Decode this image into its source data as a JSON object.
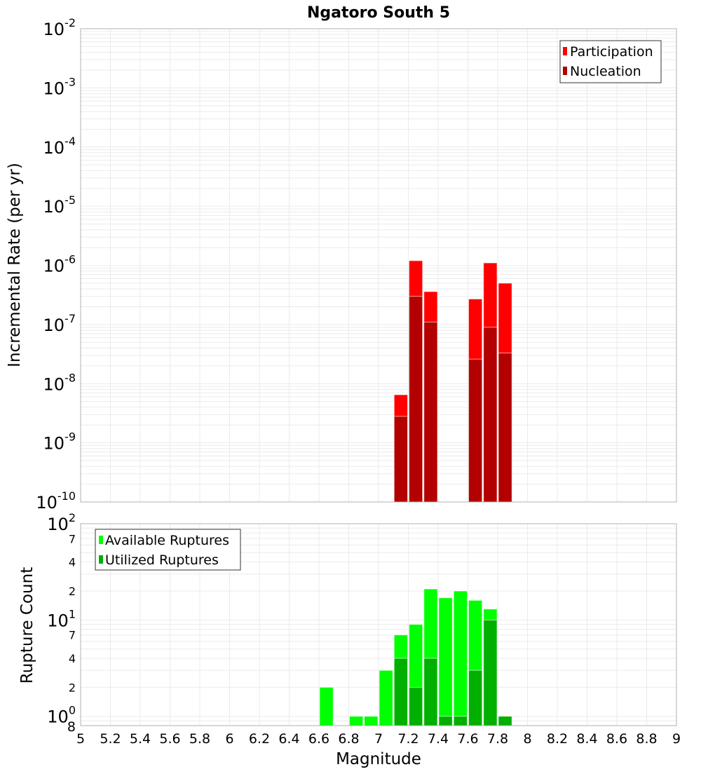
{
  "chart_data": [
    {
      "type": "bar",
      "title": "Ngatoro South 5",
      "xlabel": "Magnitude",
      "ylabel": "Incremental Rate (per yr)",
      "yscale": "log",
      "ylim": [
        1e-10,
        0.01
      ],
      "xlim": [
        5,
        9
      ],
      "grid": true,
      "legend_position": "top-right",
      "y_tick_labels": [
        "10^-2",
        "10^-3",
        "10^-4",
        "10^-5",
        "10^-6",
        "10^-7",
        "10^-8",
        "10^-9",
        "10^-10"
      ],
      "bar_width": 0.1,
      "x": [
        7.15,
        7.25,
        7.35,
        7.65,
        7.75,
        7.85
      ],
      "series": [
        {
          "name": "Participation",
          "color": "#ff0000",
          "values": [
            6.5e-09,
            1.2e-06,
            3.6e-07,
            2.7e-07,
            1.1e-06,
            5e-07
          ]
        },
        {
          "name": "Nucleation",
          "color": "#b30000",
          "values": [
            2.8e-09,
            3e-07,
            1.1e-07,
            2.6e-08,
            9e-08,
            3.3e-08
          ]
        }
      ]
    },
    {
      "type": "bar",
      "title": "",
      "xlabel": "Magnitude",
      "ylabel": "Rupture Count",
      "yscale": "log",
      "ylim": [
        0.8,
        100
      ],
      "xlim": [
        5,
        9
      ],
      "grid": true,
      "legend_position": "top-left",
      "y_tick_labels": [
        "10^2",
        "7",
        "4",
        "2",
        "10^1",
        "7",
        "4",
        "2",
        "10^0",
        "8"
      ],
      "x_tick_labels": [
        "5",
        "5.2",
        "5.4",
        "5.6",
        "5.8",
        "6",
        "6.2",
        "6.4",
        "6.6",
        "6.8",
        "7",
        "7.2",
        "7.4",
        "7.6",
        "7.8",
        "8",
        "8.2",
        "8.4",
        "8.6",
        "8.8",
        "9"
      ],
      "bar_width": 0.1,
      "x": [
        6.65,
        6.85,
        6.95,
        7.05,
        7.15,
        7.25,
        7.35,
        7.45,
        7.55,
        7.65,
        7.75,
        7.85
      ],
      "series": [
        {
          "name": "Available Ruptures",
          "color": "#00ff00",
          "values": [
            2,
            1,
            1,
            3,
            7,
            9,
            21,
            17,
            20,
            16,
            13,
            1
          ]
        },
        {
          "name": "Utilized Ruptures",
          "color": "#00b000",
          "values": [
            0,
            0,
            0,
            0,
            4,
            2,
            4,
            1,
            1,
            3,
            10,
            1
          ]
        }
      ]
    }
  ]
}
